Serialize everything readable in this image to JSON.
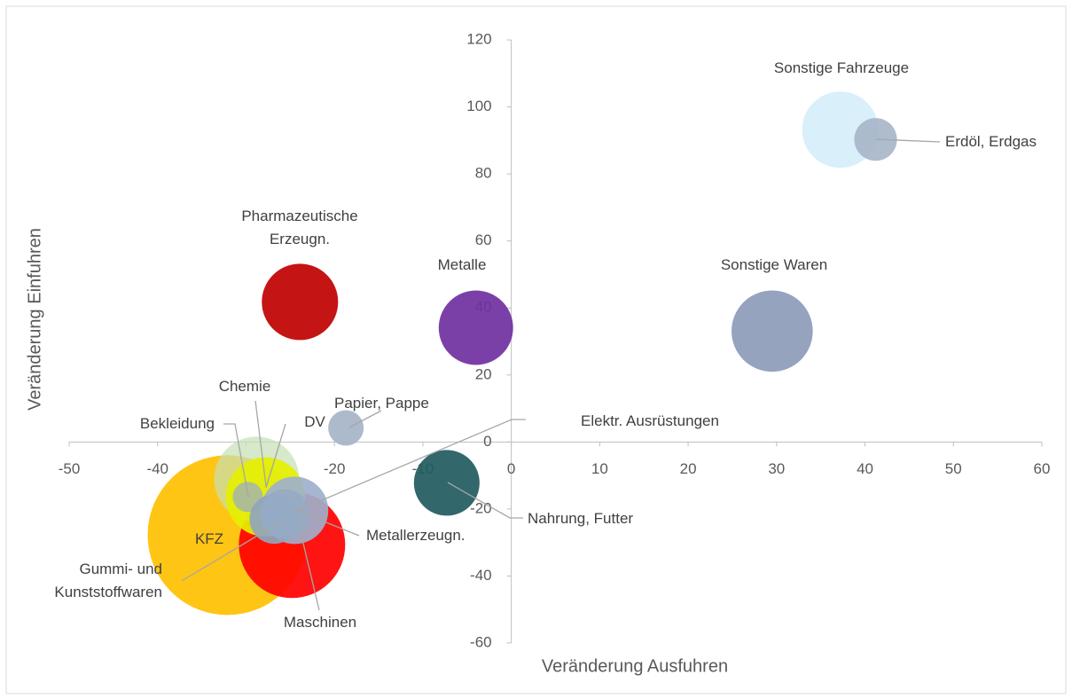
{
  "chart_data": {
    "type": "bubble",
    "xlabel": "Veränderung Ausfuhren",
    "ylabel": "Veränderung Einfuhren",
    "xlim": [
      -50,
      60
    ],
    "xticks": [
      -50,
      -40,
      -30,
      -20,
      -10,
      0,
      10,
      20,
      30,
      40,
      50,
      60
    ],
    "ylim": [
      -60,
      120
    ],
    "yticks": [
      -60,
      -40,
      -20,
      0,
      20,
      40,
      60,
      80,
      100,
      120
    ],
    "series": [
      {
        "name": "Sonstige Fahrzeuge",
        "color": "#d6eefa",
        "x": 37.2,
        "y": 93.2,
        "size": 18.5
      },
      {
        "name": "Erdöl, Erdgas",
        "color": "#a7b6c9",
        "x": 41.2,
        "y": 90.3,
        "size": 5.8
      },
      {
        "name": "Sonstige Waren",
        "color": "#8c9bb8",
        "x": 29.5,
        "y": 33.1,
        "size": 21
      },
      {
        "name": "Pharmazeutische Erzeugn.",
        "color": "#c00000",
        "x": -23.9,
        "y": 41.8,
        "size": 18.5
      },
      {
        "name": "Metalle",
        "color": "#7030a0",
        "x": -4.0,
        "y": 34.1,
        "size": 17.6
      },
      {
        "name": "Papier, Pappe",
        "color": "#a6b4c8",
        "x": -18.7,
        "y": 4.2,
        "size": 4
      },
      {
        "name": "Nahrung, Futter",
        "color": "#215a60",
        "x": -7.3,
        "y": -12.2,
        "size": 13.7
      },
      {
        "name": "KFZ",
        "color": "#ffc000",
        "x": -32.1,
        "y": -27.8,
        "size": 81
      },
      {
        "name": "Maschinen",
        "color": "#ff0000",
        "x": -24.8,
        "y": -30.7,
        "size": 36
      },
      {
        "name": "Chemie",
        "color": "#c5e0b4",
        "x": -28.8,
        "y": -11.1,
        "size": 23
      },
      {
        "name": "DV",
        "color": "#e5f000",
        "x": -27.8,
        "y": -16.4,
        "size": 20
      },
      {
        "name": "Bekleidung",
        "color": "#a9b8a0",
        "x": -29.8,
        "y": -16.4,
        "size": 2.9
      },
      {
        "name": "Metallerzeugn.",
        "color": "#9fb0cc",
        "x": -24.5,
        "y": -20.4,
        "size": 14.4
      },
      {
        "name": "Gummi- und Kunststoffwaren",
        "color": "#8fa5be",
        "x": -26.8,
        "y": -23.0,
        "size": 7.8
      },
      {
        "name": "Elektr. Ausrüstungen",
        "color": "#96aac4",
        "x": -25.6,
        "y": -21.5,
        "size": 7.8
      }
    ]
  }
}
